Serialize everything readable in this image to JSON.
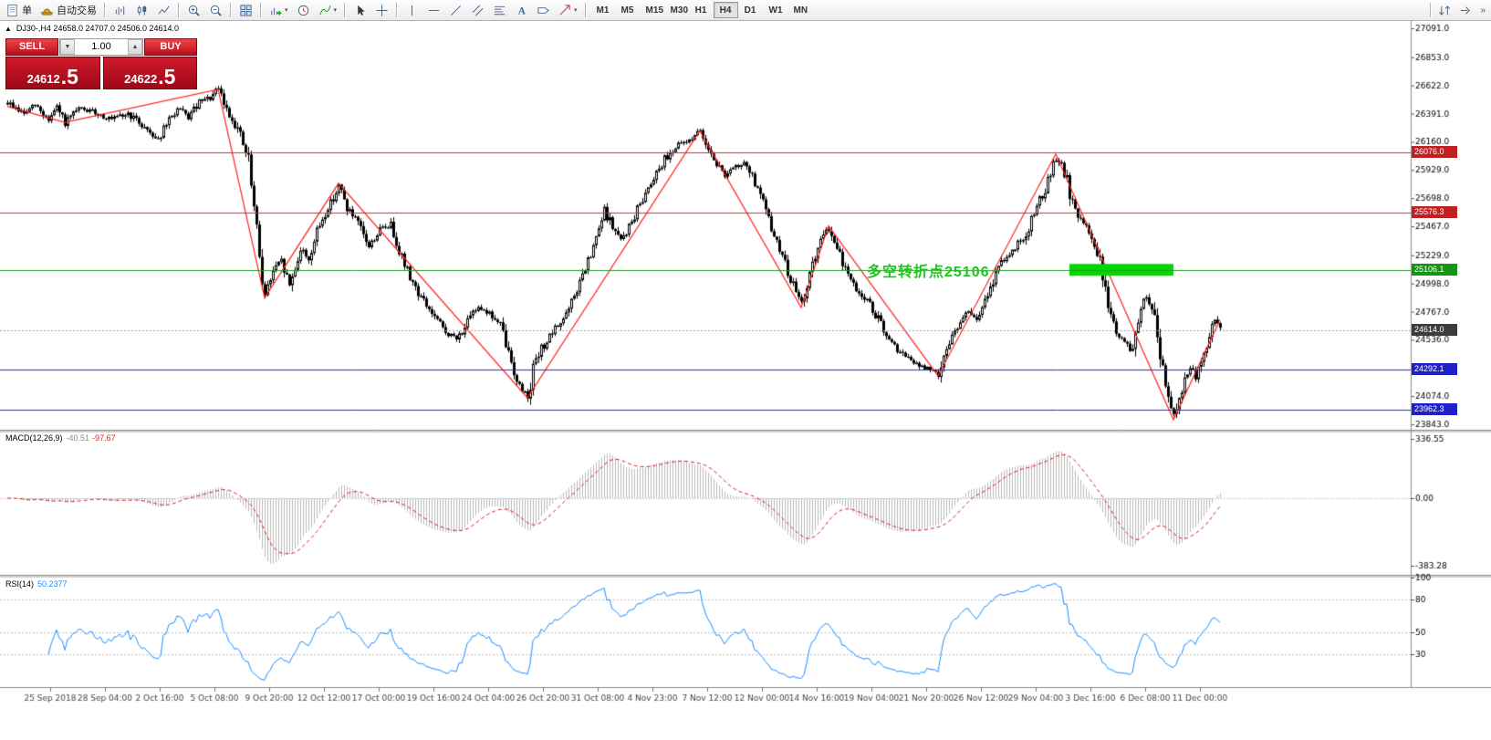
{
  "toolbar": {
    "order_label": "单",
    "autotrade_label": "自动交易",
    "timeframes": [
      "M1",
      "M5",
      "M15",
      "M30",
      "H1",
      "H4",
      "D1",
      "W1",
      "MN"
    ],
    "active_timeframe": "H4",
    "icons": [
      "new-order",
      "autotrading",
      "bars-chart",
      "candlestick-chart",
      "line-chart",
      "zoom-in",
      "zoom-out",
      "tile-windows",
      "new-chart",
      "clock",
      "indicators",
      "cursor",
      "crosshair",
      "vertical-line",
      "horizontal-line",
      "trendline",
      "channel",
      "fibonacci",
      "text",
      "label",
      "arrow",
      "chart-scroll"
    ]
  },
  "symbol_info": {
    "toggle": "▲",
    "text": "DJ30-,H4 24658.0 24707.0 24506.0 24614.0"
  },
  "trade_panel": {
    "sell_label": "SELL",
    "buy_label": "BUY",
    "volume": "1.00",
    "sell_main": "24612",
    "sell_big": ".5",
    "buy_main": "24622",
    "buy_big": ".5"
  },
  "chart_data": {
    "type": "candlestick",
    "symbol": "DJ30-",
    "period": "H4",
    "ohlc": {
      "open": 24658.0,
      "high": 24707.0,
      "low": 24506.0,
      "close": 24614.0
    },
    "bars": 444,
    "ylim": [
      23813,
      27136
    ],
    "price_ticks": [
      27091.0,
      26853.0,
      26622.0,
      26391.0,
      26160.0,
      25929.0,
      25698.0,
      25467.0,
      25229.0,
      24998.0,
      24767.0,
      24536.0,
      24305.0,
      24074.0,
      23843.0
    ],
    "levels": [
      {
        "price": 26076.0,
        "label": "26076.0",
        "color": "#d03030",
        "tag": "#c02020"
      },
      {
        "price": 25576.3,
        "label": "25576.3",
        "color": "#d03030",
        "tag": "#c02020"
      },
      {
        "price": 25106.1,
        "label": "25106.1",
        "color": "#1fa01f",
        "tag": "#149614"
      },
      {
        "price": 24292.1,
        "label": "24292.1",
        "color": "#2828d8",
        "tag": "#2020c8"
      },
      {
        "price": 23962.3,
        "label": "23962.3",
        "color": "#2828d8",
        "tag": "#2020c8"
      }
    ],
    "current_price": {
      "value": 24614.0,
      "label": "24614.0",
      "tag": "#3c3c3c"
    },
    "highlight": {
      "bar_start": 388,
      "bar_end": 426,
      "price": 25106,
      "color": "#00d800"
    },
    "annotation": {
      "text": "多空转折点25106",
      "color": "#1ec41e"
    },
    "zigzag": {
      "color": "#ff2020",
      "pivots": [
        [
          0,
          26450
        ],
        [
          21,
          26320
        ],
        [
          77,
          26590
        ],
        [
          94,
          24880
        ],
        [
          121,
          25820
        ],
        [
          190,
          24060
        ],
        [
          253,
          26250
        ],
        [
          290,
          24800
        ],
        [
          300,
          25470
        ],
        [
          340,
          24240
        ],
        [
          383,
          26060
        ],
        [
          426,
          23880
        ],
        [
          443,
          24700
        ]
      ]
    },
    "price_path": [
      [
        0,
        26480
      ],
      [
        6,
        26390
      ],
      [
        10,
        26460
      ],
      [
        15,
        26340
      ],
      [
        18,
        26440
      ],
      [
        21,
        26310
      ],
      [
        26,
        26430
      ],
      [
        32,
        26400
      ],
      [
        38,
        26340
      ],
      [
        44,
        26390
      ],
      [
        50,
        26280
      ],
      [
        55,
        26180
      ],
      [
        58,
        26300
      ],
      [
        62,
        26430
      ],
      [
        66,
        26360
      ],
      [
        70,
        26480
      ],
      [
        74,
        26520
      ],
      [
        77,
        26590
      ],
      [
        80,
        26420
      ],
      [
        84,
        26270
      ],
      [
        88,
        26000
      ],
      [
        91,
        25400
      ],
      [
        94,
        24900
      ],
      [
        97,
        25100
      ],
      [
        100,
        25180
      ],
      [
        103,
        24980
      ],
      [
        107,
        25280
      ],
      [
        110,
        25200
      ],
      [
        114,
        25480
      ],
      [
        118,
        25660
      ],
      [
        121,
        25800
      ],
      [
        124,
        25620
      ],
      [
        128,
        25480
      ],
      [
        132,
        25300
      ],
      [
        136,
        25440
      ],
      [
        140,
        25480
      ],
      [
        145,
        25150
      ],
      [
        150,
        24920
      ],
      [
        155,
        24750
      ],
      [
        160,
        24600
      ],
      [
        164,
        24540
      ],
      [
        168,
        24680
      ],
      [
        172,
        24820
      ],
      [
        176,
        24750
      ],
      [
        180,
        24650
      ],
      [
        184,
        24350
      ],
      [
        187,
        24150
      ],
      [
        190,
        24080
      ],
      [
        192,
        24300
      ],
      [
        195,
        24460
      ],
      [
        200,
        24620
      ],
      [
        205,
        24780
      ],
      [
        210,
        25060
      ],
      [
        214,
        25280
      ],
      [
        218,
        25600
      ],
      [
        221,
        25460
      ],
      [
        224,
        25350
      ],
      [
        228,
        25500
      ],
      [
        232,
        25700
      ],
      [
        236,
        25880
      ],
      [
        240,
        26020
      ],
      [
        244,
        26120
      ],
      [
        248,
        26160
      ],
      [
        251,
        26220
      ],
      [
        253,
        26240
      ],
      [
        256,
        26120
      ],
      [
        259,
        25980
      ],
      [
        262,
        25890
      ],
      [
        266,
        25950
      ],
      [
        270,
        25980
      ],
      [
        273,
        25820
      ],
      [
        276,
        25650
      ],
      [
        279,
        25450
      ],
      [
        282,
        25280
      ],
      [
        285,
        25100
      ],
      [
        288,
        24920
      ],
      [
        290,
        24830
      ],
      [
        293,
        25080
      ],
      [
        296,
        25280
      ],
      [
        298,
        25380
      ],
      [
        300,
        25450
      ],
      [
        303,
        25280
      ],
      [
        306,
        25120
      ],
      [
        309,
        24980
      ],
      [
        312,
        24900
      ],
      [
        315,
        24820
      ],
      [
        318,
        24700
      ],
      [
        321,
        24560
      ],
      [
        324,
        24470
      ],
      [
        327,
        24420
      ],
      [
        330,
        24360
      ],
      [
        333,
        24320
      ],
      [
        336,
        24300
      ],
      [
        338,
        24270
      ],
      [
        340,
        24260
      ],
      [
        342,
        24420
      ],
      [
        345,
        24560
      ],
      [
        348,
        24700
      ],
      [
        351,
        24760
      ],
      [
        354,
        24700
      ],
      [
        357,
        24840
      ],
      [
        360,
        25020
      ],
      [
        363,
        25180
      ],
      [
        366,
        25240
      ],
      [
        369,
        25320
      ],
      [
        372,
        25400
      ],
      [
        375,
        25600
      ],
      [
        378,
        25720
      ],
      [
        381,
        25900
      ],
      [
        383,
        26020
      ],
      [
        385,
        25950
      ],
      [
        387,
        25840
      ],
      [
        389,
        25650
      ],
      [
        391,
        25540
      ],
      [
        393,
        25480
      ],
      [
        395,
        25440
      ],
      [
        397,
        25320
      ],
      [
        399,
        25180
      ],
      [
        401,
        24920
      ],
      [
        403,
        24740
      ],
      [
        405,
        24600
      ],
      [
        407,
        24540
      ],
      [
        409,
        24480
      ],
      [
        411,
        24440
      ],
      [
        413,
        24700
      ],
      [
        415,
        24900
      ],
      [
        417,
        24820
      ],
      [
        419,
        24700
      ],
      [
        421,
        24420
      ],
      [
        423,
        24200
      ],
      [
        425,
        24000
      ],
      [
        426,
        23930
      ],
      [
        428,
        24080
      ],
      [
        430,
        24220
      ],
      [
        432,
        24300
      ],
      [
        434,
        24230
      ],
      [
        436,
        24380
      ],
      [
        438,
        24500
      ],
      [
        440,
        24660
      ],
      [
        441,
        24700
      ],
      [
        443,
        24620
      ]
    ],
    "time_labels": [
      "25 Sep 2018",
      "28 Sep 04:00",
      "2 Oct 16:00",
      "5 Oct 08:00",
      "9 Oct 20:00",
      "12 Oct 12:00",
      "17 Oct 00:00",
      "19 Oct 16:00",
      "24 Oct 04:00",
      "26 Oct 20:00",
      "31 Oct 08:00",
      "4 Nov 23:00",
      "7 Nov 12:00",
      "12 Nov 00:00",
      "14 Nov 16:00",
      "19 Nov 04:00",
      "21 Nov 20:00",
      "26 Nov 12:00",
      "29 Nov 04:00",
      "3 Dec 16:00",
      "6 Dec 08:00",
      "11 Dec 00:00"
    ],
    "macd": {
      "label": "MACD(12,26,9)",
      "main_value": "-40.51",
      "signal_value": "-97.67",
      "scale": [
        336.55,
        0.0,
        -383.28
      ],
      "histogram_color": "#b9b9b9",
      "signal_color": "#dd2222"
    },
    "rsi": {
      "label": "RSI(14)",
      "value": "50.2377",
      "scale": [
        100,
        80,
        50,
        30
      ],
      "levels": [
        80,
        50,
        30
      ],
      "line_color": "#1e90ff"
    }
  }
}
